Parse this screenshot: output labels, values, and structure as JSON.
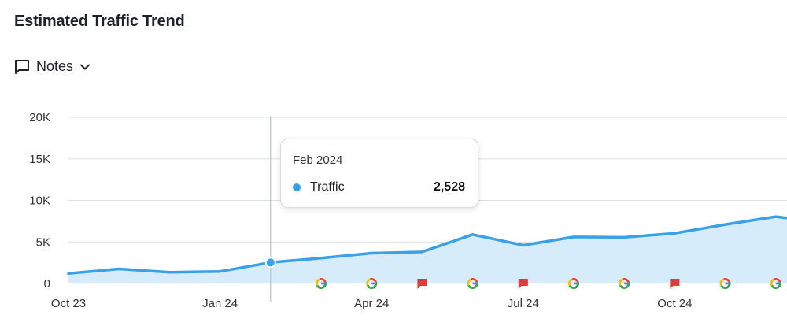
{
  "title": "Estimated Traffic Trend",
  "notes": {
    "label": "Notes",
    "icon": "comment-icon",
    "dropdown_icon": "chevron-down-icon"
  },
  "colors": {
    "series": "#3aa0e8",
    "fill": "#d6ecfa",
    "grid": "#d8dfe8",
    "google": [
      "#4285F4",
      "#EA4335",
      "#FBBC05",
      "#34A853"
    ],
    "flag": "#e53935"
  },
  "tooltip": {
    "date": "Feb 2024",
    "series_label": "Traffic",
    "value": "2,528"
  },
  "chart_data": {
    "type": "area",
    "title": "Estimated Traffic Trend",
    "y_ticks": [
      "0",
      "5K",
      "10K",
      "15K",
      "20K"
    ],
    "ylim": [
      0,
      20000
    ],
    "x_tick_labels": [
      {
        "label": "Oct 23",
        "month": "2023-10"
      },
      {
        "label": "Jan 24",
        "month": "2024-01"
      },
      {
        "label": "Apr 24",
        "month": "2024-04"
      },
      {
        "label": "Jul 24",
        "month": "2024-07"
      },
      {
        "label": "Oct 24",
        "month": "2024-10"
      }
    ],
    "series": [
      {
        "name": "Traffic",
        "x": [
          "2023-10",
          "2023-11",
          "2023-12",
          "2024-01",
          "2024-02",
          "2024-03",
          "2024-04",
          "2024-05",
          "2024-06",
          "2024-07",
          "2024-08",
          "2024-09",
          "2024-10",
          "2024-11",
          "2024-12",
          "2025-01"
        ],
        "values": [
          1200,
          1750,
          1350,
          1450,
          2528,
          3050,
          3650,
          3800,
          5900,
          4600,
          5600,
          5550,
          6050,
          7100,
          8050,
          7300
        ]
      }
    ],
    "highlighted_point": "2024-02",
    "grid": true,
    "legend": "none",
    "events": [
      {
        "month": "2024-03",
        "type": "google"
      },
      {
        "month": "2024-04",
        "type": "google"
      },
      {
        "month": "2024-05",
        "type": "flag"
      },
      {
        "month": "2024-06",
        "type": "google"
      },
      {
        "month": "2024-07",
        "type": "flag"
      },
      {
        "month": "2024-08",
        "type": "google"
      },
      {
        "month": "2024-09",
        "type": "google"
      },
      {
        "month": "2024-10",
        "type": "flag"
      },
      {
        "month": "2024-11",
        "type": "google"
      },
      {
        "month": "2024-12",
        "type": "google"
      }
    ]
  }
}
